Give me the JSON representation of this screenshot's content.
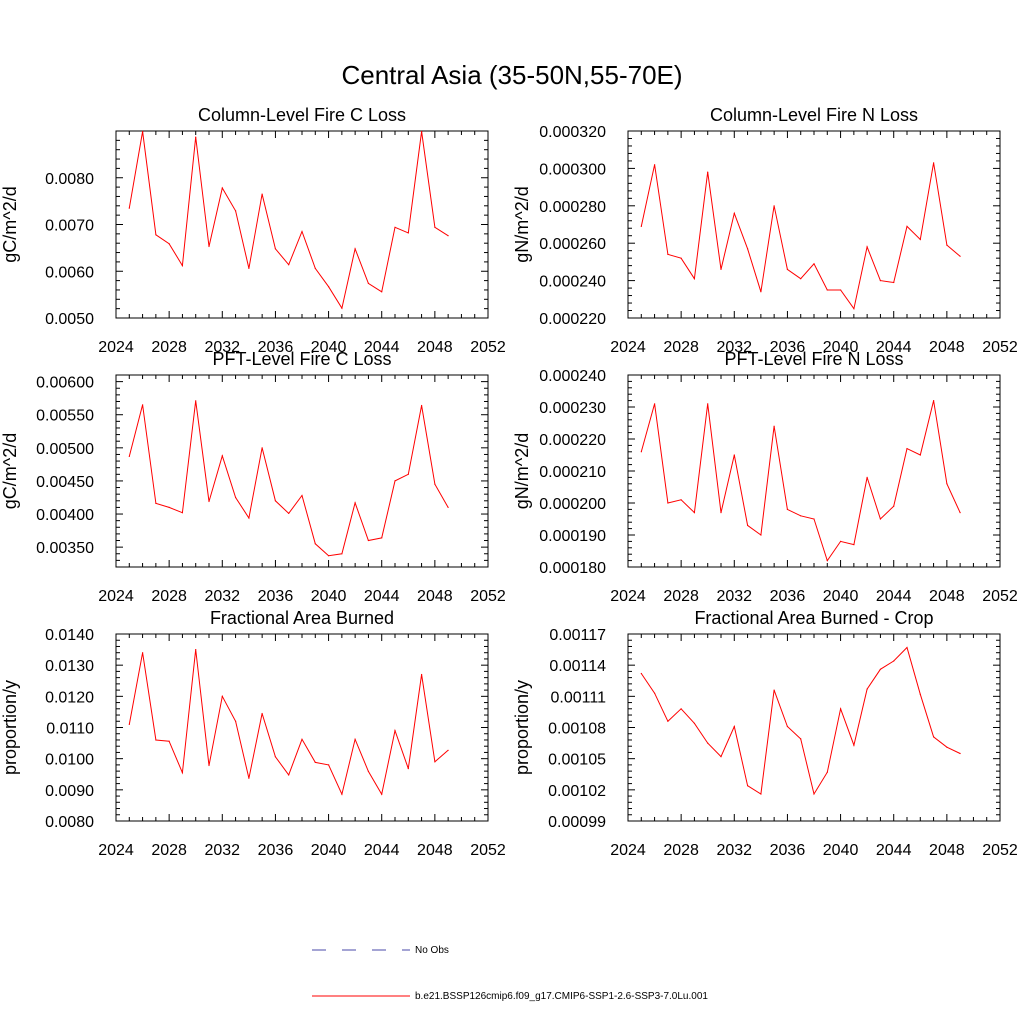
{
  "page_title": "Central Asia (35-50N,55-70E)",
  "colors": {
    "axis": "#000000",
    "series": "#ff0000",
    "no_obs": "#4a4aa8"
  },
  "legend": {
    "items": [
      {
        "label": "No Obs",
        "style": "dashed",
        "color": "#4a4aa8"
      },
      {
        "label": "b.e21.BSSP126cmip6.f09_g17.CMIP6-SSP1-2.6-SSP3-7.0Lu.001",
        "style": "solid",
        "color": "#ff0000"
      }
    ]
  },
  "chart_data": [
    {
      "type": "line",
      "title": "Column-Level Fire C Loss",
      "ylabel": "gC/m^2/d",
      "xlim": [
        2024,
        2052
      ],
      "ylim": [
        0.005,
        0.009
      ],
      "xticks": [
        "2024",
        "2028",
        "2032",
        "2036",
        "2040",
        "2044",
        "2048",
        "2052"
      ],
      "yticks": [
        "0.0050",
        "0.0060",
        "0.0070",
        "0.0080"
      ],
      "x": [
        2025,
        2026,
        2027,
        2028,
        2029,
        2030,
        2031,
        2032,
        2033,
        2034,
        2035,
        2036,
        2037,
        2038,
        2039,
        2040,
        2041,
        2042,
        2043,
        2044,
        2045,
        2046,
        2047,
        2048,
        2049
      ],
      "series": [
        {
          "values": [
            0.00735,
            0.00899,
            0.00678,
            0.00659,
            0.00612,
            0.00887,
            0.00653,
            0.00778,
            0.00729,
            0.00606,
            0.00765,
            0.00648,
            0.00614,
            0.00685,
            0.00606,
            0.00567,
            0.00521,
            0.00648,
            0.00574,
            0.00556,
            0.00694,
            0.00682,
            0.00899,
            0.00694,
            0.00676
          ]
        }
      ]
    },
    {
      "type": "line",
      "title": "Column-Level Fire N Loss",
      "ylabel": "gN/m^2/d",
      "xlim": [
        2024,
        2052
      ],
      "ylim": [
        0.00022,
        0.00032
      ],
      "xticks": [
        "2024",
        "2028",
        "2032",
        "2036",
        "2040",
        "2044",
        "2048",
        "2052"
      ],
      "yticks": [
        "0.000220",
        "0.000240",
        "0.000260",
        "0.000280",
        "0.000300",
        "0.000320"
      ],
      "x": [
        2025,
        2026,
        2027,
        2028,
        2029,
        2030,
        2031,
        2032,
        2033,
        2034,
        2035,
        2036,
        2037,
        2038,
        2039,
        2040,
        2041,
        2042,
        2043,
        2044,
        2045,
        2046,
        2047,
        2048,
        2049
      ],
      "series": [
        {
          "values": [
            0.000269,
            0.000302,
            0.000254,
            0.000252,
            0.000241,
            0.000298,
            0.000246,
            0.000276,
            0.000257,
            0.000234,
            0.00028,
            0.000246,
            0.000241,
            0.000249,
            0.000235,
            0.000235,
            0.000225,
            0.000258,
            0.00024,
            0.000239,
            0.000269,
            0.000262,
            0.000303,
            0.000259,
            0.000253
          ]
        }
      ]
    },
    {
      "type": "line",
      "title": "PFT-Level Fire C Loss",
      "ylabel": "gC/m^2/d",
      "xlim": [
        2024,
        2052
      ],
      "ylim": [
        0.0032,
        0.0061
      ],
      "xticks": [
        "2024",
        "2028",
        "2032",
        "2036",
        "2040",
        "2044",
        "2048",
        "2052"
      ],
      "yticks": [
        "0.00350",
        "0.00400",
        "0.00450",
        "0.00500",
        "0.00550",
        "0.00600"
      ],
      "x": [
        2025,
        2026,
        2027,
        2028,
        2029,
        2030,
        2031,
        2032,
        2033,
        2034,
        2035,
        2036,
        2037,
        2038,
        2039,
        2040,
        2041,
        2042,
        2043,
        2044,
        2045,
        2046,
        2047,
        2048,
        2049
      ],
      "series": [
        {
          "values": [
            0.00487,
            0.00565,
            0.00416,
            0.0041,
            0.00402,
            0.00571,
            0.00419,
            0.00488,
            0.00425,
            0.00394,
            0.005,
            0.0042,
            0.00401,
            0.00428,
            0.00355,
            0.00337,
            0.0034,
            0.00417,
            0.0036,
            0.00364,
            0.0045,
            0.0046,
            0.00564,
            0.00445,
            0.0041
          ]
        }
      ]
    },
    {
      "type": "line",
      "title": "PFT-Level Fire N Loss",
      "ylabel": "gN/m^2/d",
      "xlim": [
        2024,
        2052
      ],
      "ylim": [
        0.00018,
        0.00024
      ],
      "xticks": [
        "2024",
        "2028",
        "2032",
        "2036",
        "2040",
        "2044",
        "2048",
        "2052"
      ],
      "yticks": [
        "0.000180",
        "0.000190",
        "0.000200",
        "0.000210",
        "0.000220",
        "0.000230",
        "0.000240"
      ],
      "x": [
        2025,
        2026,
        2027,
        2028,
        2029,
        2030,
        2031,
        2032,
        2033,
        2034,
        2035,
        2036,
        2037,
        2038,
        2039,
        2040,
        2041,
        2042,
        2043,
        2044,
        2045,
        2046,
        2047,
        2048,
        2049
      ],
      "series": [
        {
          "values": [
            0.000216,
            0.000231,
            0.0002,
            0.000201,
            0.000197,
            0.000231,
            0.000197,
            0.000215,
            0.000193,
            0.00019,
            0.000224,
            0.000198,
            0.000196,
            0.000195,
            0.000182,
            0.000188,
            0.000187,
            0.000208,
            0.000195,
            0.000199,
            0.000217,
            0.000215,
            0.000232,
            0.000206,
            0.000197
          ]
        }
      ]
    },
    {
      "type": "line",
      "title": "Fractional Area Burned",
      "ylabel": "proportion/y",
      "xlim": [
        2024,
        2052
      ],
      "ylim": [
        0.008,
        0.014
      ],
      "xticks": [
        "2024",
        "2028",
        "2032",
        "2036",
        "2040",
        "2044",
        "2048",
        "2052"
      ],
      "yticks": [
        "0.0080",
        "0.0090",
        "0.0100",
        "0.0110",
        "0.0120",
        "0.0130",
        "0.0140"
      ],
      "x": [
        2025,
        2026,
        2027,
        2028,
        2029,
        2030,
        2031,
        2032,
        2033,
        2034,
        2035,
        2036,
        2037,
        2038,
        2039,
        2040,
        2041,
        2042,
        2043,
        2044,
        2045,
        2046,
        2047,
        2048,
        2049
      ],
      "series": [
        {
          "values": [
            0.0111,
            0.0134,
            0.0106,
            0.01056,
            0.00955,
            0.0135,
            0.00978,
            0.012,
            0.0112,
            0.00937,
            0.01145,
            0.01006,
            0.00948,
            0.01062,
            0.00988,
            0.0098,
            0.00886,
            0.01062,
            0.00959,
            0.00886,
            0.0109,
            0.00968,
            0.0127,
            0.0099,
            0.01027
          ]
        }
      ]
    },
    {
      "type": "line",
      "title": "Fractional Area Burned - Crop",
      "ylabel": "proportion/y",
      "xlim": [
        2024,
        2052
      ],
      "ylim": [
        0.00099,
        0.00117
      ],
      "xticks": [
        "2024",
        "2028",
        "2032",
        "2036",
        "2040",
        "2044",
        "2048",
        "2052"
      ],
      "yticks": [
        "0.00099",
        "0.00102",
        "0.00105",
        "0.00108",
        "0.00111",
        "0.00114",
        "0.00117"
      ],
      "x": [
        2025,
        2026,
        2027,
        2028,
        2029,
        2030,
        2031,
        2032,
        2033,
        2034,
        2035,
        2036,
        2037,
        2038,
        2039,
        2040,
        2041,
        2042,
        2043,
        2044,
        2045,
        2046,
        2047,
        2048,
        2049
      ],
      "series": [
        {
          "values": [
            0.001132,
            0.001113,
            0.001086,
            0.001098,
            0.001084,
            0.001065,
            0.001052,
            0.001081,
            0.001024,
            0.001016,
            0.001116,
            0.001081,
            0.001069,
            0.001016,
            0.001037,
            0.001098,
            0.001063,
            0.001117,
            0.001136,
            0.001144,
            0.001157,
            0.001112,
            0.001071,
            0.001061,
            0.001055
          ]
        }
      ]
    }
  ]
}
